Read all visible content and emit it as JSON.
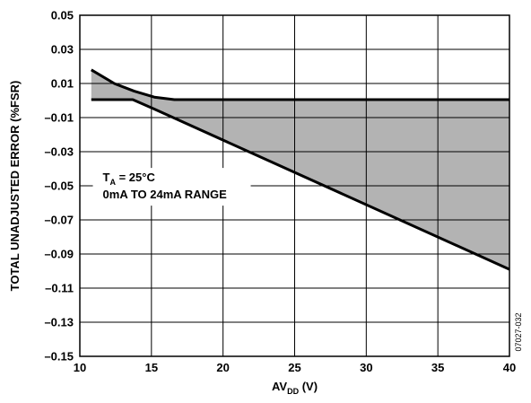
{
  "chart_data": {
    "type": "area",
    "xlabel_main": "AV",
    "xlabel_sub": "DD",
    "xlabel_suffix": " (V)",
    "ylabel": "TOTAL UNADJUSTED ERROR (%FSR)",
    "xlim": [
      10,
      40
    ],
    "ylim": [
      -0.15,
      0.05
    ],
    "x_ticks": [
      "10",
      "15",
      "20",
      "25",
      "30",
      "35",
      "40"
    ],
    "x_tick_values": [
      10,
      15,
      20,
      25,
      30,
      35,
      40
    ],
    "y_ticks": [
      "0.05",
      "0.03",
      "0.01",
      "–0.01",
      "–0.03",
      "–0.05",
      "–0.07",
      "–0.09",
      "–0.11",
      "–0.13",
      "–0.15"
    ],
    "y_tick_values": [
      0.05,
      0.03,
      0.01,
      -0.01,
      -0.03,
      -0.05,
      -0.07,
      -0.09,
      -0.11,
      -0.13,
      -0.15
    ],
    "grid": true,
    "series": [
      {
        "x": [
          10.8,
          12.4,
          13.8,
          15.2,
          16.6,
          40
        ],
        "y": [
          0.018,
          0.01,
          0.0055,
          0.002,
          0.0005,
          0.0005
        ]
      },
      {
        "x": [
          10.8,
          13.7,
          15.2,
          40
        ],
        "y": [
          0.0005,
          0.0005,
          -0.005,
          -0.099
        ]
      }
    ],
    "fill_between": true,
    "fill_color": "#b3b3b3",
    "annotation": {
      "line1_main": "T",
      "line1_sub": "A",
      "line1_suffix": " = 25°C",
      "line2": "0mA TO 24mA RANGE",
      "x": 11.6,
      "y": -0.049
    },
    "figure_id": "07027-032"
  }
}
